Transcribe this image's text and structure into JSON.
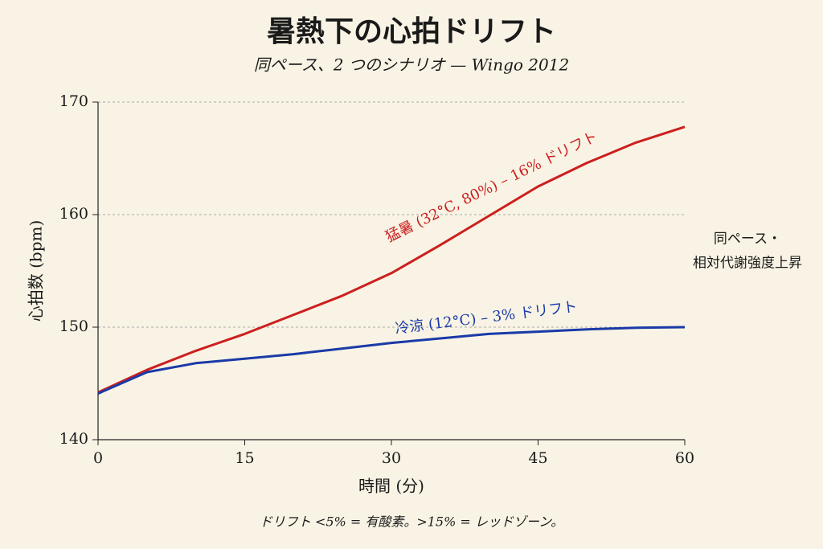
{
  "chart_data": {
    "type": "line",
    "title": "暑熱下の心拍ドリフト",
    "subtitle": "同ペース、2 つのシナリオ — Wingo 2012",
    "x_label": "時間 (分)",
    "y_label": "心拍数 (bpm)",
    "x": [
      0,
      5,
      10,
      15,
      20,
      25,
      30,
      35,
      40,
      45,
      50,
      55,
      60
    ],
    "series": [
      {
        "name": "猛暑 (32°C, 80%) – 16% ドリフト",
        "color": "#cc1f1f",
        "values": [
          144.2,
          146.2,
          147.9,
          149.4,
          151.1,
          152.8,
          154.8,
          157.3,
          159.9,
          162.5,
          164.6,
          166.4,
          167.8
        ]
      },
      {
        "name": "冷涼 (12°C) – 3% ドリフト",
        "color": "#1a3aa8",
        "values": [
          144.1,
          146.0,
          146.8,
          147.2,
          147.6,
          148.1,
          148.6,
          149.0,
          149.4,
          149.6,
          149.8,
          149.95,
          150.0
        ]
      }
    ],
    "xlim": [
      0,
      60
    ],
    "xticks": [
      0,
      15,
      30,
      45,
      60
    ],
    "ylim": [
      140,
      170
    ],
    "yticks": [
      140,
      150,
      160,
      170
    ],
    "grid": true,
    "side_note": [
      "同ペース・",
      "相対代謝強度上昇"
    ],
    "footnote": "ドリフト <5% = 有酸素。>15% = レッドゾーン。"
  }
}
